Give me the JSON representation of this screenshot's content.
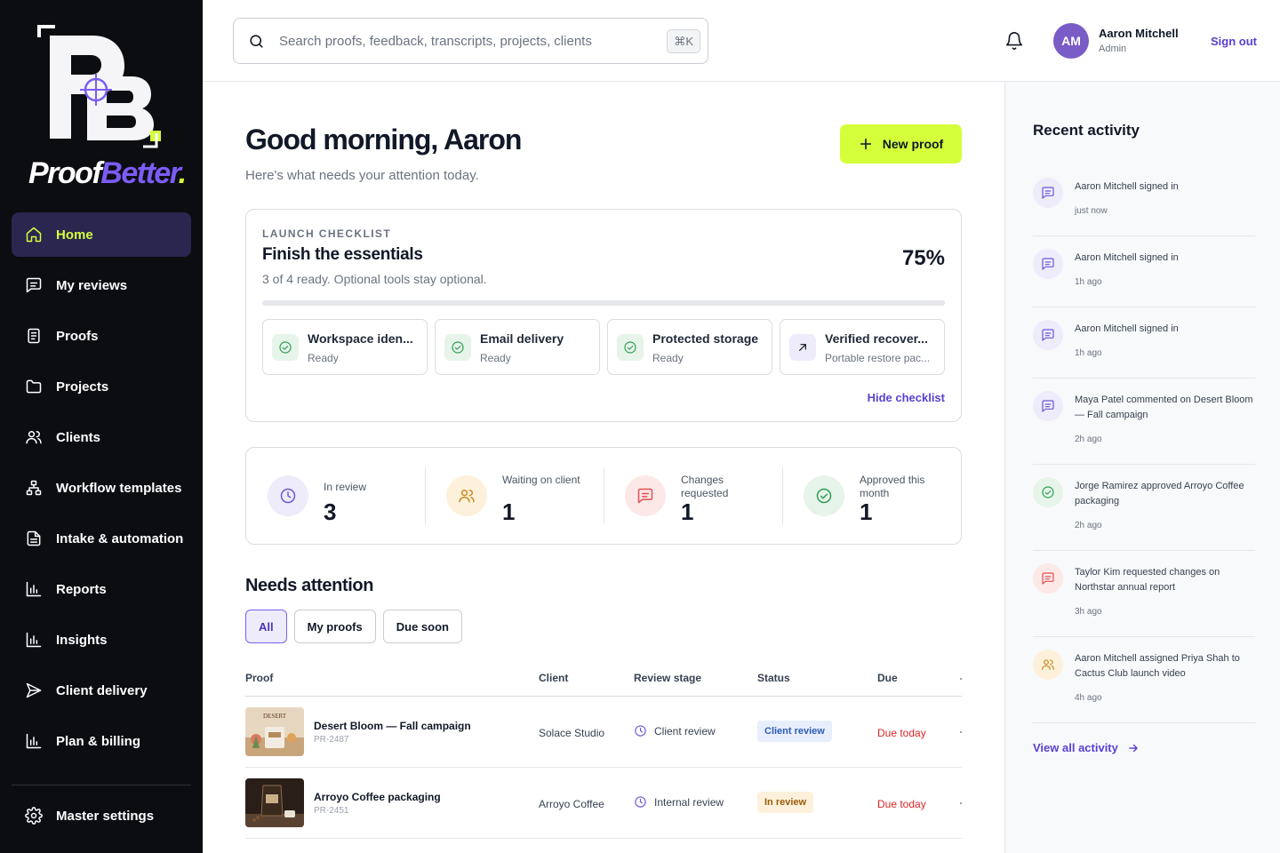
{
  "brand": {
    "name_part1": "Proof",
    "name_part2": "Better",
    "name_dot": "."
  },
  "sidebar": {
    "items": [
      {
        "label": "Home",
        "icon": "home-icon",
        "active": true
      },
      {
        "label": "My reviews",
        "icon": "chat-icon"
      },
      {
        "label": "Proofs",
        "icon": "document-icon"
      },
      {
        "label": "Projects",
        "icon": "folder-icon"
      },
      {
        "label": "Clients",
        "icon": "users-icon"
      },
      {
        "label": "Workflow templates",
        "icon": "workflow-icon"
      },
      {
        "label": "Intake & automation",
        "icon": "file-icon"
      },
      {
        "label": "Reports",
        "icon": "bar-chart-icon"
      },
      {
        "label": "Insights",
        "icon": "bar-chart-icon"
      },
      {
        "label": "Client delivery",
        "icon": "send-icon"
      },
      {
        "label": "Plan & billing",
        "icon": "bar-chart-icon"
      }
    ],
    "settings_label": "Master settings"
  },
  "topbar": {
    "search_placeholder": "Search proofs, feedback, transcripts, projects, clients",
    "shortcut": "⌘K",
    "user_initials": "AM",
    "user_name": "Aaron Mitchell",
    "user_role": "Admin",
    "sign_out": "Sign out"
  },
  "main": {
    "greeting": "Good morning, Aaron",
    "subtitle": "Here's what needs your attention today.",
    "new_proof": "New proof",
    "checklist": {
      "eyebrow": "LAUNCH CHECKLIST",
      "title": "Finish the essentials",
      "description": "3 of 4 ready. Optional tools stay optional.",
      "percent": "75%",
      "progress": 0.75,
      "items": [
        {
          "name": "Workspace iden...",
          "state": "Ready",
          "icon": "check-circle-icon"
        },
        {
          "name": "Email delivery",
          "state": "Ready",
          "icon": "check-circle-icon"
        },
        {
          "name": "Protected storage",
          "state": "Ready",
          "icon": "check-circle-icon"
        },
        {
          "name": "Verified recover...",
          "state": "Portable restore pac...",
          "icon": "arrow-up-right-icon"
        }
      ],
      "hide": "Hide checklist"
    },
    "stats": [
      {
        "label": "In review",
        "value": "3",
        "icon": "clock-icon",
        "bg": "#eeecfb",
        "fg": "#6d55d8"
      },
      {
        "label": "Waiting on client",
        "value": "1",
        "icon": "users-icon",
        "bg": "#fdf1dc",
        "fg": "#c98a1d"
      },
      {
        "label": "Changes requested",
        "value": "1",
        "icon": "chat-icon",
        "bg": "#fde8e8",
        "fg": "#e05252"
      },
      {
        "label": "Approved this month",
        "value": "1",
        "icon": "check-circle-icon",
        "bg": "#e6f4ea",
        "fg": "#2f9e55"
      }
    ],
    "needs_attention": {
      "title": "Needs attention",
      "filters": [
        "All",
        "My proofs",
        "Due soon"
      ],
      "columns": [
        "Proof",
        "Client",
        "Review stage",
        "Status",
        "Due"
      ],
      "rows": [
        {
          "name": "Desert Bloom — Fall campaign",
          "id": "PR-2487",
          "client": "Solace Studio",
          "stage": "Client review",
          "status": "Client review",
          "status_bg": "#e8eefb",
          "status_fg": "#2f5bb7",
          "due": "Due today"
        },
        {
          "name": "Arroyo Coffee packaging",
          "id": "PR-2451",
          "client": "Arroyo Coffee",
          "stage": "Internal review",
          "status": "In review",
          "status_bg": "#fdf1dc",
          "status_fg": "#9a5b0a",
          "due": "Due today"
        }
      ]
    }
  },
  "activity": {
    "title": "Recent activity",
    "items": [
      {
        "text": "Aaron Mitchell signed in",
        "time": "just now",
        "icon": "chat-icon",
        "bg": "#eeecfb",
        "fg": "#6d55d8"
      },
      {
        "text": "Aaron Mitchell signed in",
        "time": "1h ago",
        "icon": "chat-icon",
        "bg": "#eeecfb",
        "fg": "#6d55d8"
      },
      {
        "text": "Aaron Mitchell signed in",
        "time": "1h ago",
        "icon": "chat-icon",
        "bg": "#eeecfb",
        "fg": "#6d55d8"
      },
      {
        "text": "Maya Patel commented on Desert Bloom — Fall campaign",
        "time": "2h ago",
        "icon": "chat-icon",
        "bg": "#eeecfb",
        "fg": "#6d55d8"
      },
      {
        "text": "Jorge Ramirez approved Arroyo Coffee packaging",
        "time": "2h ago",
        "icon": "check-circle-icon",
        "bg": "#e6f4ea",
        "fg": "#2f9e55"
      },
      {
        "text": "Taylor Kim requested changes on Northstar annual report",
        "time": "3h ago",
        "icon": "chat-icon",
        "bg": "#fde8e8",
        "fg": "#e05252"
      },
      {
        "text": "Aaron Mitchell assigned Priya Shah to Cactus Club launch video",
        "time": "4h ago",
        "icon": "users-icon",
        "bg": "#fdf1dc",
        "fg": "#c98a1d"
      }
    ],
    "view_all": "View all activity"
  }
}
